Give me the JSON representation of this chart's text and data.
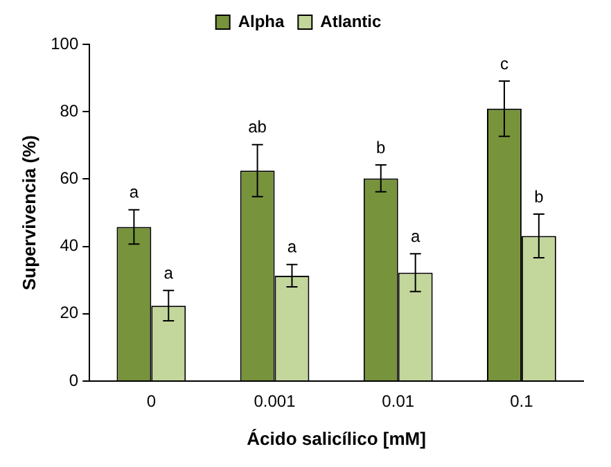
{
  "chart_data": {
    "type": "bar",
    "xlabel": "Ácido salicílico [mM]",
    "ylabel": "Supervivencia (%)",
    "categories": [
      "0",
      "0.001",
      "0.01",
      "0.1"
    ],
    "series": [
      {
        "name": "Alpha",
        "color": "#77933c",
        "values": [
          45.8,
          62.5,
          60.2,
          80.9
        ],
        "errors": [
          5.1,
          7.7,
          4,
          8.2
        ]
      },
      {
        "name": "Atlantic",
        "color": "#c3d69b",
        "values": [
          22.4,
          31.3,
          32.2,
          43.1
        ],
        "errors": [
          4.5,
          3.3,
          5.6,
          6.5
        ]
      }
    ],
    "ylim": [
      0,
      100
    ],
    "yticks": [
      0,
      20,
      40,
      60,
      80,
      100
    ],
    "grid": false,
    "legend": "top",
    "annotations": [
      "a",
      "a",
      "ab",
      "a",
      "b",
      "a",
      "c",
      "b"
    ]
  }
}
